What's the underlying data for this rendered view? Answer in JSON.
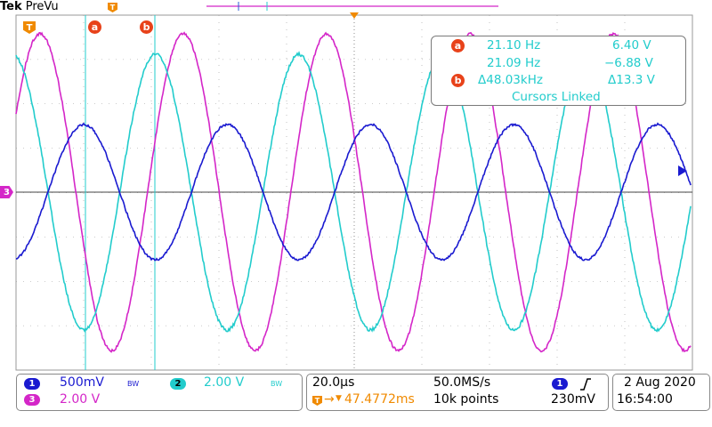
{
  "brand": {
    "name": "Tek",
    "mode": "PreVu"
  },
  "colors": {
    "ch1": "#1a1ad0",
    "ch2": "#22cccc",
    "ch3": "#d426c8",
    "trigger": "#f08a00",
    "cursor": "#e8421a",
    "grid": "#999999"
  },
  "markers": {
    "trigger": "T",
    "cursor_a": "a",
    "cursor_b": "b",
    "ch3_ground": "3"
  },
  "readout": {
    "a_label": "a",
    "b_label": "b",
    "a_freq": "21.10 Hz",
    "a_volt": "6.40 V",
    "b_freq": "21.09 Hz",
    "b_volt": "−6.88 V",
    "delta_freq": "Δ48.03kHz",
    "delta_volt": "Δ13.3 V",
    "linked": "Cursors Linked"
  },
  "channels": {
    "ch1": {
      "num": "1",
      "scale": "500mV",
      "bw": "BW"
    },
    "ch2": {
      "num": "2",
      "scale": "2.00 V",
      "bw": "BW"
    },
    "ch3": {
      "num": "3",
      "scale": "2.00 V"
    }
  },
  "timebase": {
    "scale": "20.0µs",
    "rate": "50.0MS/s",
    "position": "47.4772ms",
    "points": "10k points"
  },
  "trigger": {
    "source": "1",
    "slope_icon": "rising-edge-icon",
    "level": "230mV"
  },
  "datetime": {
    "date": "2 Aug 2020",
    "time": "16:54:00"
  }
}
